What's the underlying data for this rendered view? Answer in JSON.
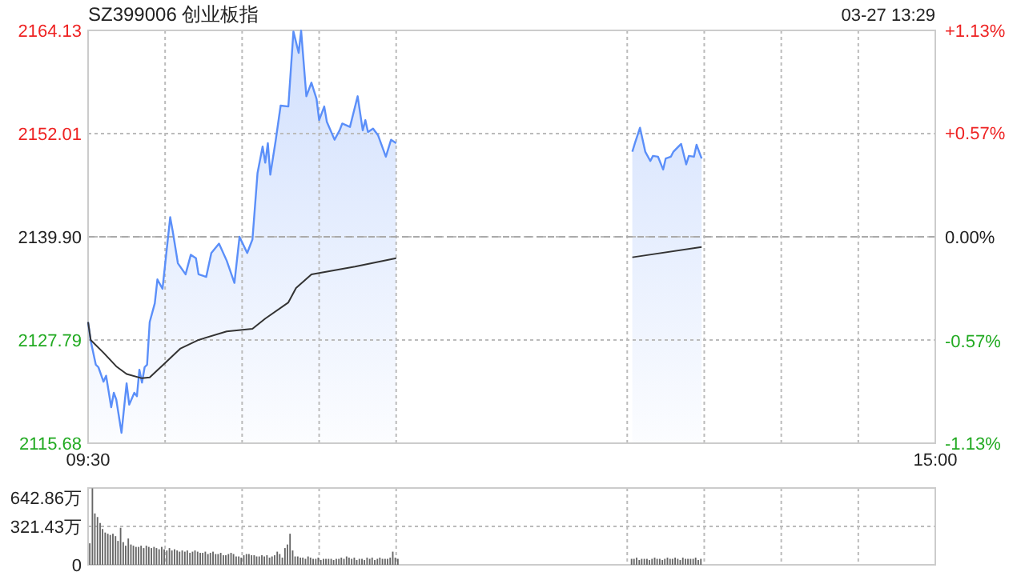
{
  "chart_data": [
    {
      "type": "line",
      "title": "SZ399006 创业板指",
      "annotations": [
        "03-27 13:29"
      ],
      "series": [
        {
          "type": "area",
          "color": "#5b8ff9",
          "x": [
            9.5,
            9.517,
            9.55,
            9.567,
            9.6,
            9.617,
            9.65,
            9.667,
            9.683,
            9.717,
            9.75,
            9.767,
            9.8,
            9.817,
            9.833,
            9.85,
            9.867,
            9.883,
            9.9,
            9.933,
            9.95,
            9.983,
            10.033,
            10.05,
            10.083,
            10.133,
            10.167,
            10.2,
            10.217,
            10.267,
            10.3,
            10.35,
            10.4,
            10.45,
            10.483,
            10.533,
            10.567,
            10.6,
            10.633,
            10.65,
            10.667,
            10.683,
            10.717,
            10.75,
            10.8,
            10.833,
            10.867,
            10.883,
            10.917,
            10.95,
            10.983,
            11,
            11.033,
            11.05,
            11.1,
            11.133,
            11.15,
            11.2,
            11.25,
            11.283,
            11.3,
            11.317,
            11.35,
            11.383,
            11.433,
            11.467,
            11.5,
            12,
            13.033,
            13.05,
            13.083,
            13.117,
            13.15,
            13.167,
            13.2,
            13.233,
            13.25,
            13.283,
            13.3,
            13.333,
            13.35,
            13.383,
            13.4,
            13.433,
            13.45,
            13.483
          ],
          "values": [
            2129.9,
            2127.7,
            2124.9,
            2124.6,
            2122.9,
            2123.6,
            2119.9,
            2121.6,
            2120.8,
            2116.9,
            2122.7,
            2120.2,
            2121.6,
            2121.2,
            2124.3,
            2122.8,
            2124.6,
            2124.9,
            2129.9,
            2132.1,
            2134.9,
            2133.8,
            2142.2,
            2140.5,
            2136.8,
            2135.5,
            2137.8,
            2137.4,
            2135.5,
            2135.2,
            2138.0,
            2139.1,
            2137.1,
            2134.5,
            2139.9,
            2138.0,
            2139.6,
            2147.4,
            2150.5,
            2148.6,
            2150.9,
            2147.2,
            2151.1,
            2155.3,
            2155.2,
            2164.0,
            2161.5,
            2164.1,
            2156.4,
            2158.0,
            2156.1,
            2153.6,
            2155.2,
            2153.4,
            2151.3,
            2152.4,
            2153.2,
            2152.8,
            2156.4,
            2152.4,
            2153.6,
            2152.2,
            2152.6,
            2151.8,
            2149.3,
            2151.3,
            2150.9,
            null,
            2149.9,
            2150.9,
            2152.7,
            2149.9,
            2148.8,
            2149.4,
            2149.3,
            2147.8,
            2149.1,
            2149.3,
            2149.9,
            2150.5,
            2150.8,
            2148.4,
            2149.4,
            2149.3,
            2150.7,
            2149.1
          ]
        },
        {
          "type": "line",
          "color": "#333333",
          "x": [
            9.5,
            9.517,
            9.6,
            9.683,
            9.75,
            9.85,
            9.9,
            10,
            10.1,
            10.217,
            10.4,
            10.567,
            10.65,
            10.8,
            10.85,
            10.95,
            11.233,
            11.5,
            12,
            13.033,
            13.483
          ],
          "values": [
            2129.9,
            2127.8,
            2126.3,
            2124.7,
            2123.8,
            2123.3,
            2123.4,
            2125.1,
            2126.8,
            2127.8,
            2128.8,
            2129.1,
            2130.3,
            2132.2,
            2133.9,
            2135.5,
            2136.4,
            2137.4,
            null,
            2137.5,
            2138.7
          ]
        }
      ],
      "xlim": [
        9.5,
        15
      ],
      "xticks": [
        {
          "value": 9.5,
          "label": "09:30"
        },
        {
          "value": 10,
          "label": null
        },
        {
          "value": 10.5,
          "label": null
        },
        {
          "value": 11,
          "label": null
        },
        {
          "value": 11.5,
          "label": null
        },
        {
          "value": 13,
          "label": null
        },
        {
          "value": 13.5,
          "label": null
        },
        {
          "value": 14,
          "label": null
        },
        {
          "value": 14.5,
          "label": null
        },
        {
          "value": 15,
          "label": "15:00"
        }
      ],
      "ylim": [
        2115.68,
        2164.13
      ],
      "yticks": [
        2115.68,
        2127.79,
        {
          "value": 2139.9,
          "label": "2139.90"
        },
        2152.01,
        2164.13
      ],
      "y2lim": [
        -1.13,
        1.13
      ],
      "y2ticks": [
        {
          "value": -1.13,
          "label": "-1.13%"
        },
        {
          "value": -0.57,
          "label": "-0.57%"
        },
        {
          "value": 0,
          "label": "0.00%"
        },
        {
          "value": 0.57,
          "label": "+0.57%"
        },
        {
          "value": 1.13,
          "label": "+1.13%"
        }
      ],
      "ref_lines": [
        {
          "axis": "y",
          "value": 2139.9,
          "color": "#aaaaaa",
          "line_style": "dashed"
        }
      ],
      "grid": true
    },
    {
      "type": "bar",
      "color": "#666666",
      "x": [
        9.5,
        9.517,
        9.533,
        9.55,
        9.567,
        9.583,
        9.6,
        9.617,
        9.633,
        9.65,
        9.667,
        9.683,
        9.7,
        9.717,
        9.733,
        9.75,
        9.767,
        9.783,
        9.8,
        9.817,
        9.833,
        9.85,
        9.867,
        9.883,
        9.9,
        9.917,
        9.933,
        9.95,
        9.967,
        9.983,
        10,
        10.017,
        10.033,
        10.05,
        10.067,
        10.083,
        10.1,
        10.117,
        10.133,
        10.15,
        10.167,
        10.183,
        10.2,
        10.217,
        10.233,
        10.25,
        10.267,
        10.283,
        10.3,
        10.317,
        10.333,
        10.35,
        10.367,
        10.383,
        10.4,
        10.417,
        10.433,
        10.45,
        10.467,
        10.483,
        10.5,
        10.517,
        10.533,
        10.55,
        10.567,
        10.583,
        10.6,
        10.617,
        10.633,
        10.65,
        10.667,
        10.683,
        10.7,
        10.717,
        10.733,
        10.75,
        10.767,
        10.783,
        10.8,
        10.817,
        10.833,
        10.85,
        10.867,
        10.883,
        10.9,
        10.917,
        10.933,
        10.95,
        10.967,
        10.983,
        11,
        11.017,
        11.033,
        11.05,
        11.067,
        11.083,
        11.1,
        11.117,
        11.133,
        11.15,
        11.167,
        11.183,
        11.2,
        11.217,
        11.233,
        11.25,
        11.267,
        11.283,
        11.3,
        11.317,
        11.333,
        11.35,
        11.367,
        11.383,
        11.4,
        11.417,
        11.433,
        11.45,
        11.467,
        11.483,
        11.5,
        13.017,
        13.033,
        13.05,
        13.067,
        13.083,
        13.1,
        13.117,
        13.133,
        13.15,
        13.167,
        13.183,
        13.2,
        13.217,
        13.233,
        13.25,
        13.267,
        13.283,
        13.3,
        13.317,
        13.333,
        13.35,
        13.367,
        13.383,
        13.4,
        13.417,
        13.433,
        13.45,
        13.467
      ],
      "values": [
        180,
        640,
        430,
        400,
        350,
        300,
        270,
        260,
        250,
        260,
        240,
        200,
        310,
        190,
        160,
        220,
        170,
        160,
        150,
        150,
        160,
        140,
        160,
        150,
        140,
        150,
        140,
        130,
        150,
        130,
        120,
        140,
        120,
        130,
        120,
        110,
        120,
        110,
        120,
        100,
        110,
        120,
        110,
        100,
        100,
        110,
        90,
        100,
        110,
        90,
        90,
        100,
        80,
        80,
        90,
        100,
        90,
        70,
        70,
        60,
        80,
        90,
        90,
        80,
        80,
        70,
        70,
        80,
        70,
        80,
        60,
        70,
        80,
        110,
        90,
        60,
        140,
        170,
        260,
        120,
        70,
        70,
        60,
        60,
        50,
        70,
        60,
        50,
        50,
        60,
        40,
        50,
        50,
        50,
        50,
        40,
        50,
        50,
        60,
        50,
        70,
        60,
        50,
        60,
        40,
        50,
        50,
        40,
        60,
        50,
        60,
        40,
        50,
        60,
        50,
        50,
        50,
        60,
        110,
        60,
        50,
        50,
        50,
        60,
        40,
        50,
        50,
        50,
        40,
        50,
        60,
        50,
        50,
        40,
        50,
        60,
        50,
        50,
        60,
        50,
        40,
        60,
        50,
        50,
        50,
        50,
        60,
        40,
        50
      ],
      "xlim": [
        9.5,
        15
      ],
      "xticks": [
        9.5,
        10,
        10.5,
        11,
        11.5,
        13,
        13.5,
        14,
        14.5,
        15
      ],
      "ylim": [
        0,
        642.86
      ],
      "yticks": [
        0,
        {
          "value": 321.43,
          "label": "321.43万"
        },
        {
          "value": 642.86,
          "label": "642.86万"
        }
      ],
      "tick_labels": "y",
      "grid": true
    }
  ]
}
